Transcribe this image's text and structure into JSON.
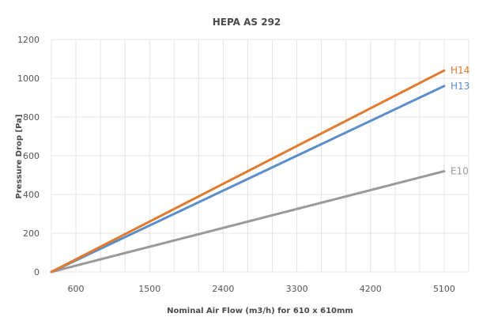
{
  "chart_data": {
    "type": "line",
    "title": "HEPA AS 292",
    "xlabel": "Nominal Air Flow (m3/h) for 610 x 610mm",
    "ylabel": "Pressure Drop [Pa]",
    "xlim": [
      300,
      5400
    ],
    "ylim": [
      0,
      1200
    ],
    "x_ticks": [
      600,
      1500,
      2400,
      3300,
      4200,
      5100
    ],
    "y_ticks": [
      0,
      200,
      400,
      600,
      800,
      1000,
      1200
    ],
    "grid": true,
    "series": [
      {
        "name": "H14",
        "color": "#e07a2e",
        "x": [
          300,
          5100
        ],
        "y": [
          0,
          1040
        ]
      },
      {
        "name": "H13",
        "color": "#5b8ec9",
        "x": [
          300,
          5100
        ],
        "y": [
          0,
          960
        ]
      },
      {
        "name": "E10",
        "color": "#9a9a9a",
        "x": [
          300,
          5100
        ],
        "y": [
          0,
          520
        ]
      }
    ]
  }
}
